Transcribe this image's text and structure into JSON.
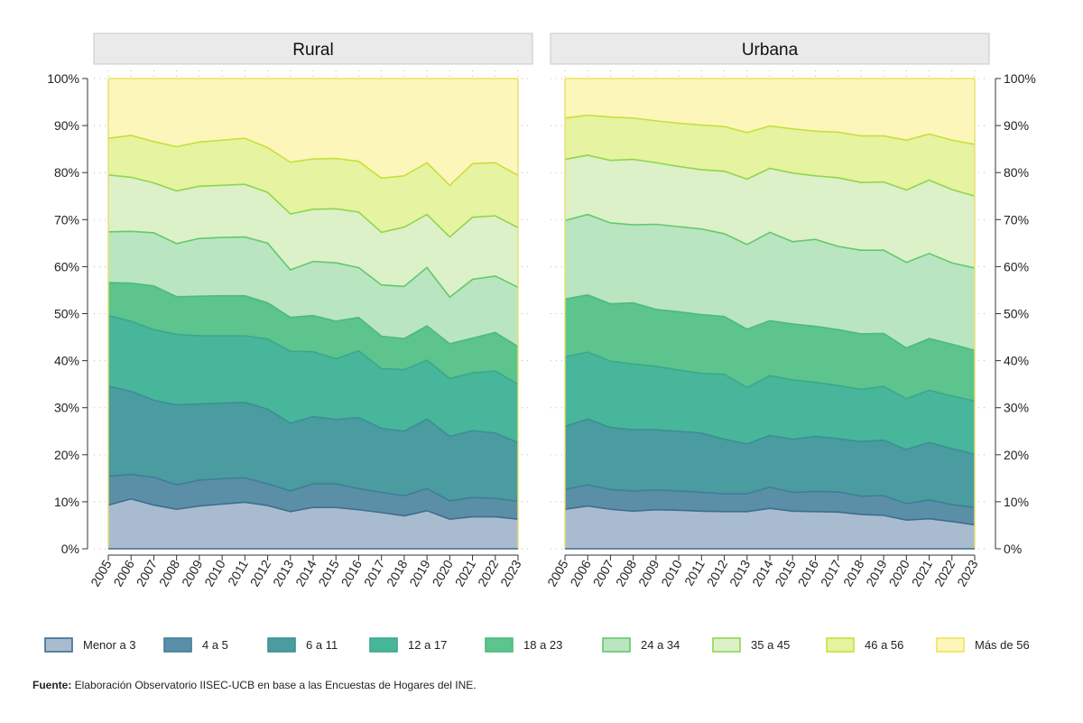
{
  "chart_data": {
    "type": "area",
    "stacked": true,
    "x": [
      2005,
      2006,
      2007,
      2008,
      2009,
      2010,
      2011,
      2012,
      2013,
      2014,
      2015,
      2016,
      2017,
      2018,
      2019,
      2020,
      2021,
      2022,
      2023
    ],
    "y_ticks": [
      "0%",
      "10%",
      "20%",
      "30%",
      "40%",
      "50%",
      "60%",
      "70%",
      "80%",
      "90%",
      "100%"
    ],
    "ylim": [
      0,
      100
    ],
    "legend_position": "bottom",
    "series_names": [
      "Menor a 3",
      "4 a 5",
      "6 a 11",
      "12 a 17",
      "18 a 23",
      "24 a 34",
      "35 a 45",
      "46 a 56",
      "Más de 56"
    ],
    "fill_colors": [
      "#a9bccf",
      "#5b8fa8",
      "#4a9ca0",
      "#48b69a",
      "#5cc48c",
      "#b9e6c0",
      "#dcf1c8",
      "#e6f3a0",
      "#fcf6bb"
    ],
    "line_colors": [
      "#3e6d8e",
      "#3e7f96",
      "#3a9093",
      "#3aa88e",
      "#4dbb7a",
      "#62c96c",
      "#8fd64e",
      "#c6e03c",
      "#eee45a"
    ],
    "panels": [
      {
        "title": "Rural",
        "cumulative": [
          [
            9.3,
            10.6,
            9.3,
            8.4,
            9.1,
            9.5,
            9.9,
            9.2,
            7.9,
            8.8,
            8.8,
            8.3,
            7.7,
            7.0,
            8.1,
            6.3,
            6.8,
            6.8,
            6.3
          ],
          [
            15.4,
            15.8,
            15.2,
            13.6,
            14.6,
            14.9,
            15.1,
            13.8,
            12.3,
            13.8,
            13.8,
            12.8,
            12.0,
            11.3,
            12.8,
            10.2,
            10.9,
            10.7,
            10.1
          ],
          [
            34.6,
            33.5,
            31.6,
            30.6,
            30.8,
            31.0,
            31.1,
            29.7,
            26.7,
            28.1,
            27.5,
            27.9,
            25.6,
            25.0,
            27.6,
            23.9,
            25.1,
            24.6,
            22.6
          ],
          [
            49.6,
            48.4,
            46.6,
            45.6,
            45.3,
            45.3,
            45.3,
            44.6,
            42.0,
            41.9,
            40.4,
            42.1,
            38.3,
            38.1,
            40.1,
            36.2,
            37.4,
            37.8,
            35.0
          ],
          [
            56.6,
            56.5,
            55.9,
            53.6,
            53.7,
            53.8,
            53.8,
            52.3,
            49.2,
            49.6,
            48.4,
            49.2,
            45.2,
            44.7,
            47.4,
            43.6,
            44.8,
            46.0,
            43.0
          ],
          [
            67.4,
            67.5,
            67.2,
            64.9,
            66.0,
            66.2,
            66.3,
            65.0,
            59.3,
            61.1,
            60.8,
            59.8,
            56.1,
            55.8,
            59.8,
            53.5,
            57.3,
            58.0,
            55.6
          ],
          [
            79.5,
            79.0,
            77.8,
            76.1,
            77.1,
            77.3,
            77.5,
            75.8,
            71.2,
            72.2,
            72.3,
            71.6,
            67.3,
            68.4,
            71.1,
            66.3,
            70.5,
            70.8,
            68.3
          ],
          [
            87.3,
            87.9,
            86.6,
            85.5,
            86.5,
            86.9,
            87.3,
            85.3,
            82.2,
            82.9,
            83.0,
            82.4,
            78.8,
            79.3,
            82.1,
            77.3,
            81.9,
            82.1,
            79.4
          ],
          [
            100,
            100,
            100,
            100,
            100,
            100,
            100,
            100,
            100,
            100,
            100,
            100,
            100,
            100,
            100,
            100,
            100,
            100,
            100
          ]
        ]
      },
      {
        "title": "Urbana",
        "cumulative": [
          [
            8.4,
            9.1,
            8.4,
            8.0,
            8.3,
            8.2,
            8.0,
            7.9,
            7.9,
            8.6,
            8.0,
            7.9,
            7.8,
            7.3,
            7.1,
            6.1,
            6.4,
            5.8,
            5.1
          ],
          [
            12.6,
            13.6,
            12.6,
            12.3,
            12.5,
            12.3,
            12.0,
            11.7,
            11.7,
            13.1,
            12.0,
            12.2,
            12.1,
            11.2,
            11.3,
            9.6,
            10.4,
            9.4,
            8.8
          ],
          [
            26.0,
            27.6,
            25.8,
            25.3,
            25.3,
            25.0,
            24.6,
            23.3,
            22.3,
            24.1,
            23.3,
            23.9,
            23.4,
            22.8,
            23.1,
            21.1,
            22.6,
            21.3,
            20.1
          ],
          [
            40.8,
            41.8,
            39.9,
            39.3,
            38.8,
            38.0,
            37.3,
            37.1,
            34.3,
            36.8,
            35.9,
            35.4,
            34.7,
            33.9,
            34.5,
            31.9,
            33.7,
            32.5,
            31.4
          ],
          [
            53.1,
            54.0,
            52.1,
            52.3,
            50.9,
            50.4,
            49.8,
            49.4,
            46.7,
            48.5,
            47.8,
            47.3,
            46.6,
            45.7,
            45.8,
            42.7,
            44.7,
            43.5,
            42.2
          ],
          [
            69.8,
            71.1,
            69.3,
            68.9,
            69.0,
            68.5,
            68.0,
            67.0,
            64.7,
            67.3,
            65.3,
            65.8,
            64.3,
            63.5,
            63.5,
            60.9,
            62.8,
            60.8,
            59.7
          ],
          [
            82.8,
            83.7,
            82.6,
            82.8,
            82.1,
            81.3,
            80.6,
            80.3,
            78.6,
            80.9,
            79.9,
            79.3,
            78.9,
            77.9,
            78.0,
            76.3,
            78.4,
            76.4,
            75.0
          ],
          [
            91.6,
            92.2,
            91.8,
            91.6,
            91.0,
            90.5,
            90.1,
            89.8,
            88.5,
            89.9,
            89.3,
            88.8,
            88.6,
            87.8,
            87.8,
            86.9,
            88.2,
            86.9,
            86.0
          ],
          [
            100,
            100,
            100,
            100,
            100,
            100,
            100,
            100,
            100,
            100,
            100,
            100,
            100,
            100,
            100,
            100,
            100,
            100,
            100
          ]
        ]
      }
    ]
  },
  "source": {
    "label": "Fuente:",
    "text": " Elaboración Observatorio IISEC-UCB en base a las Encuestas de Hogares del INE."
  }
}
